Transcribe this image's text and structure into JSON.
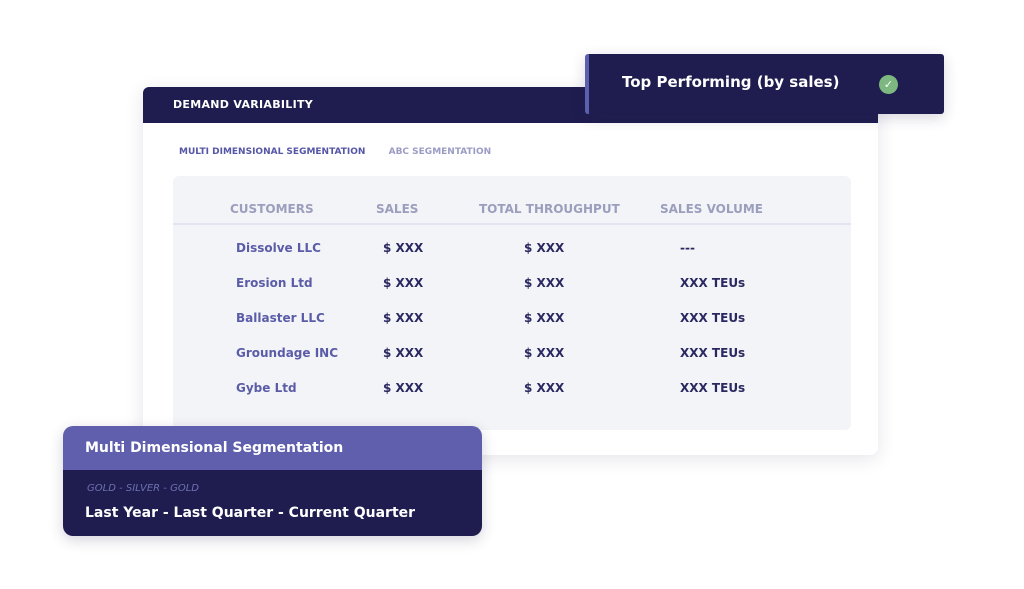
{
  "card": {
    "title": "DEMAND VARIABILITY",
    "tabs": [
      {
        "label": "MULTI DIMENSIONAL SEGMENTATION",
        "active": true
      },
      {
        "label": "ABC SEGMENTATION",
        "active": false
      }
    ],
    "table": {
      "columns": [
        "CUSTOMERS",
        "SALES",
        "TOTAL THROUGHPUT",
        "SALES VOLUME"
      ],
      "rows": [
        [
          "Dissolve LLC",
          "$ XXX",
          "$ XXX",
          "---"
        ],
        [
          "Erosion Ltd",
          "$ XXX",
          "$ XXX",
          "XXX TEUs"
        ],
        [
          "Ballaster LLC",
          "$ XXX",
          "$ XXX",
          "XXX TEUs"
        ],
        [
          "Groundage INC",
          "$ XXX",
          "$ XXX",
          "XXX TEUs"
        ],
        [
          "Gybe Ltd",
          "$ XXX",
          "$ XXX",
          "XXX TEUs"
        ]
      ]
    }
  },
  "popup": {
    "label": "Top Performing (by sales)",
    "icon": "check-circle-icon",
    "icon_color": "#7cb87f"
  },
  "segment_card": {
    "title": "Multi Dimensional Segmentation",
    "subtitle": "GOLD - SILVER - GOLD",
    "periods": "Last Year - Last Quarter - Current Quarter"
  },
  "colors": {
    "navy": "#1f1d4f",
    "accent": "#5f5fad"
  }
}
